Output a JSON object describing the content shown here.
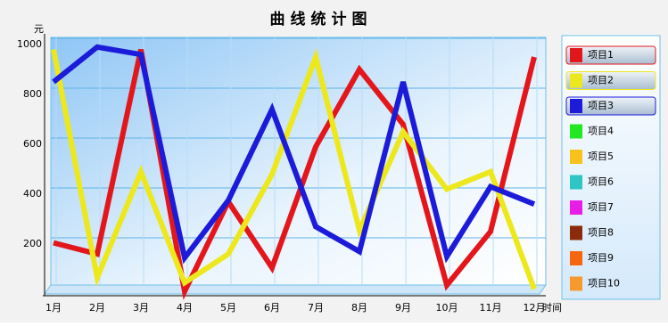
{
  "chart_data": {
    "type": "line",
    "title": "曲线统计图",
    "y_label": "元",
    "x_label": "时间",
    "categories": [
      "1月",
      "2月",
      "3月",
      "4月",
      "5月",
      "6月",
      "7月",
      "8月",
      "9月",
      "10月",
      "11月",
      "12月"
    ],
    "ylim": [
      0,
      1000
    ],
    "yticks": [
      200,
      400,
      600,
      800,
      1000
    ],
    "grid": true,
    "legend": "right",
    "series": [
      {
        "name": "项目1",
        "color": "#e3171b",
        "values": [
          205,
          160,
          980,
          10,
          370,
          105,
          590,
          900,
          680,
          35,
          250,
          950
        ]
      },
      {
        "name": "项目2",
        "color": "#ede81c",
        "values": [
          980,
          65,
          490,
          45,
          160,
          480,
          950,
          255,
          650,
          420,
          490,
          20
        ]
      },
      {
        "name": "项目3",
        "color": "#1b1bd9",
        "values": [
          850,
          990,
          960,
          145,
          375,
          740,
          270,
          170,
          850,
          150,
          430,
          360
        ]
      },
      {
        "name": "项目4",
        "color": "#22e822",
        "values": [
          null,
          null,
          null,
          null,
          null,
          null,
          null,
          null,
          null,
          null,
          null,
          null
        ]
      },
      {
        "name": "项目5",
        "color": "#f7c21c",
        "values": [
          null,
          null,
          null,
          null,
          null,
          null,
          null,
          null,
          null,
          null,
          null,
          null
        ]
      },
      {
        "name": "项目6",
        "color": "#2ec5c5",
        "values": [
          null,
          null,
          null,
          null,
          null,
          null,
          null,
          null,
          null,
          null,
          null,
          null
        ]
      },
      {
        "name": "项目7",
        "color": "#e81ee8",
        "values": [
          null,
          null,
          null,
          null,
          null,
          null,
          null,
          null,
          null,
          null,
          null,
          null
        ]
      },
      {
        "name": "项目8",
        "color": "#8b2b0b",
        "values": [
          null,
          null,
          null,
          null,
          null,
          null,
          null,
          null,
          null,
          null,
          null,
          null
        ]
      },
      {
        "name": "项目9",
        "color": "#f7650f",
        "values": [
          null,
          null,
          null,
          null,
          null,
          null,
          null,
          null,
          null,
          null,
          null,
          null
        ]
      },
      {
        "name": "项目10",
        "color": "#f79a2e",
        "values": [
          null,
          null,
          null,
          null,
          null,
          null,
          null,
          null,
          null,
          null,
          null,
          null
        ]
      }
    ]
  }
}
